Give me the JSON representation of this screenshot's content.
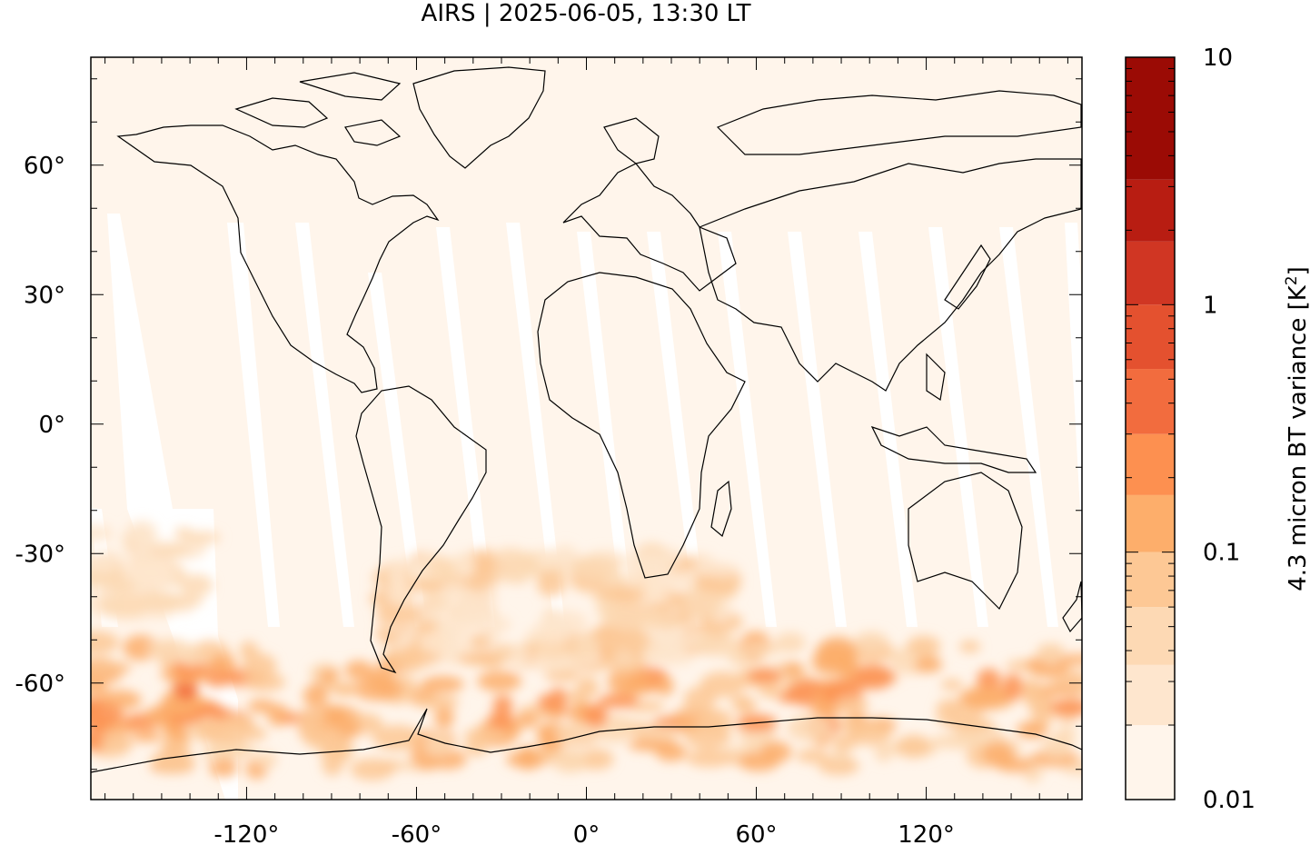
{
  "title": "AIRS | 2025-06-05, 13:30 LT",
  "map": {
    "lon_range": [
      -175,
      175
    ],
    "lat_range": [
      -87,
      85
    ],
    "x_ticks": [
      {
        "lon": -120,
        "label": "-120°"
      },
      {
        "lon": -60,
        "label": "-60°"
      },
      {
        "lon": 0,
        "label": "0°"
      },
      {
        "lon": 60,
        "label": "60°"
      },
      {
        "lon": 120,
        "label": "120°"
      }
    ],
    "y_ticks": [
      {
        "lat": 60,
        "label": "60°"
      },
      {
        "lat": 30,
        "label": "30°"
      },
      {
        "lat": 0,
        "label": "0°"
      },
      {
        "lat": -30,
        "label": "-30°"
      },
      {
        "lat": -60,
        "label": "-60°"
      }
    ],
    "background_color": "#fff5eb",
    "coastline_color": "#000000"
  },
  "colorbar": {
    "label": "4.3 micron BT variance [K",
    "label_sup": "2",
    "label_close": "]",
    "scale": "log",
    "range": [
      0.01,
      10
    ],
    "ticks": [
      {
        "value": 10,
        "label": "10"
      },
      {
        "value": 1,
        "label": "1"
      },
      {
        "value": 0.1,
        "label": "0.1"
      },
      {
        "value": 0.01,
        "label": "0.01"
      }
    ],
    "levels": [
      0.01,
      0.02,
      0.035,
      0.06,
      0.1,
      0.17,
      0.3,
      0.55,
      1,
      1.8,
      3.2,
      10
    ],
    "colors": [
      "#fff5eb",
      "#fee6ce",
      "#fdd9b4",
      "#fdc895",
      "#fdae6b",
      "#fd9050",
      "#f26c3e",
      "#e4512f",
      "#d03623",
      "#b81d12",
      "#9b0b05"
    ]
  }
}
